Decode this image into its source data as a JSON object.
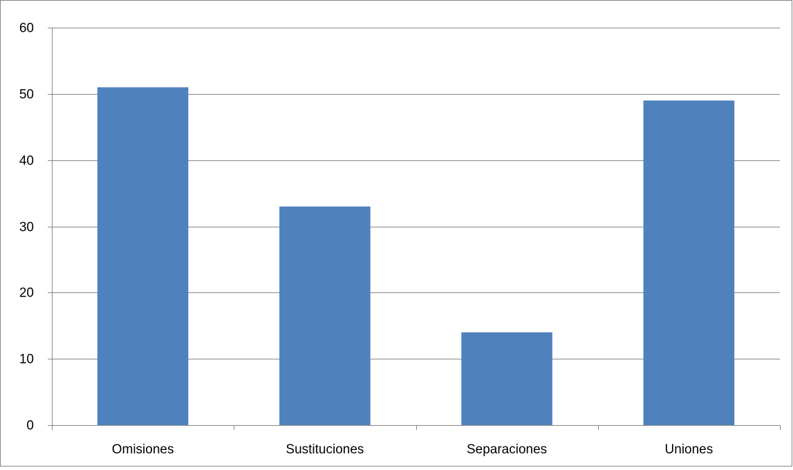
{
  "chart_data": {
    "type": "bar",
    "title": "",
    "xlabel": "",
    "ylabel": "",
    "categories": [
      "Omisiones",
      "Sustituciones",
      "Separaciones",
      "Uniones"
    ],
    "values": [
      51,
      33,
      14,
      49
    ],
    "ylim": [
      0,
      60
    ],
    "yticks": [
      0,
      10,
      20,
      30,
      40,
      50,
      60
    ],
    "grid": true,
    "legend": "none",
    "bar_color": "#4f81bd",
    "grid_color": "#868686",
    "axis_color": "#868686"
  }
}
